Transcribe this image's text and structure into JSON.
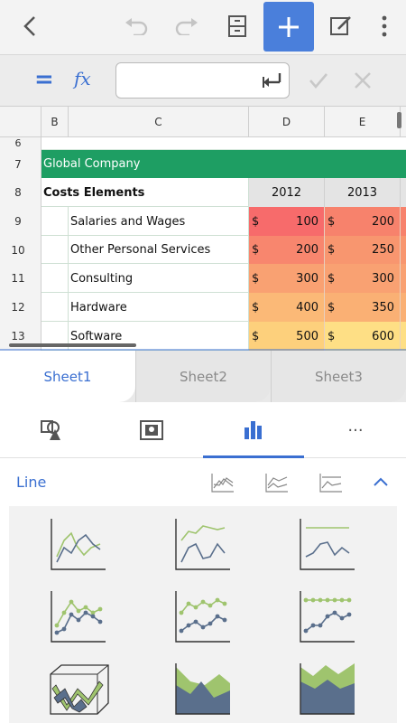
{
  "toolbar": {
    "icons": [
      "back-arrow-icon",
      "undo-icon",
      "redo-icon",
      "cabinet-icon",
      "plus-icon",
      "edit-icon",
      "more-vertical-icon"
    ],
    "accent": "#4a7fdb"
  },
  "formula": {
    "equals": "=",
    "fx": "fx",
    "value": ""
  },
  "sheet": {
    "col_headers": [
      "B",
      "C",
      "D",
      "E"
    ],
    "row_numbers": [
      "6",
      "7",
      "8",
      "9",
      "10",
      "11",
      "12",
      "13"
    ],
    "title": "Global Company",
    "header_label": "Costs Elements",
    "years": [
      "2012",
      "2013"
    ],
    "rows": [
      {
        "label": "Salaries and Wages",
        "d_sym": "$",
        "d": "100",
        "e_sym": "$",
        "e": "200"
      },
      {
        "label": "Other Personal Services",
        "d_sym": "$",
        "d": "200",
        "e_sym": "$",
        "e": "250"
      },
      {
        "label": "Consulting",
        "d_sym": "$",
        "d": "300",
        "e_sym": "$",
        "e": "300"
      },
      {
        "label": "Hardware",
        "d_sym": "$",
        "d": "400",
        "e_sym": "$",
        "e": "350"
      },
      {
        "label": "Software",
        "d_sym": "$",
        "d": "500",
        "e_sym": "$",
        "e": "600"
      }
    ],
    "title_color": "#1e9e63"
  },
  "sheet_tabs": [
    "Sheet1",
    "Sheet2",
    "Sheet3"
  ],
  "tool_tabs": {
    "icons": [
      "shapes-icon",
      "image-icon",
      "bar-chart-icon",
      "more-horizontal-icon"
    ],
    "more": "···"
  },
  "charts": {
    "section_label": "Line",
    "collapse_icon": "chevron-up-icon",
    "variants": [
      "line-chart",
      "stacked-line-chart",
      "percent-line-chart",
      "line-markers-chart",
      "stacked-line-markers-chart",
      "percent-line-markers-chart",
      "3d-line-chart",
      "area-chart",
      "stacked-area-chart"
    ]
  }
}
